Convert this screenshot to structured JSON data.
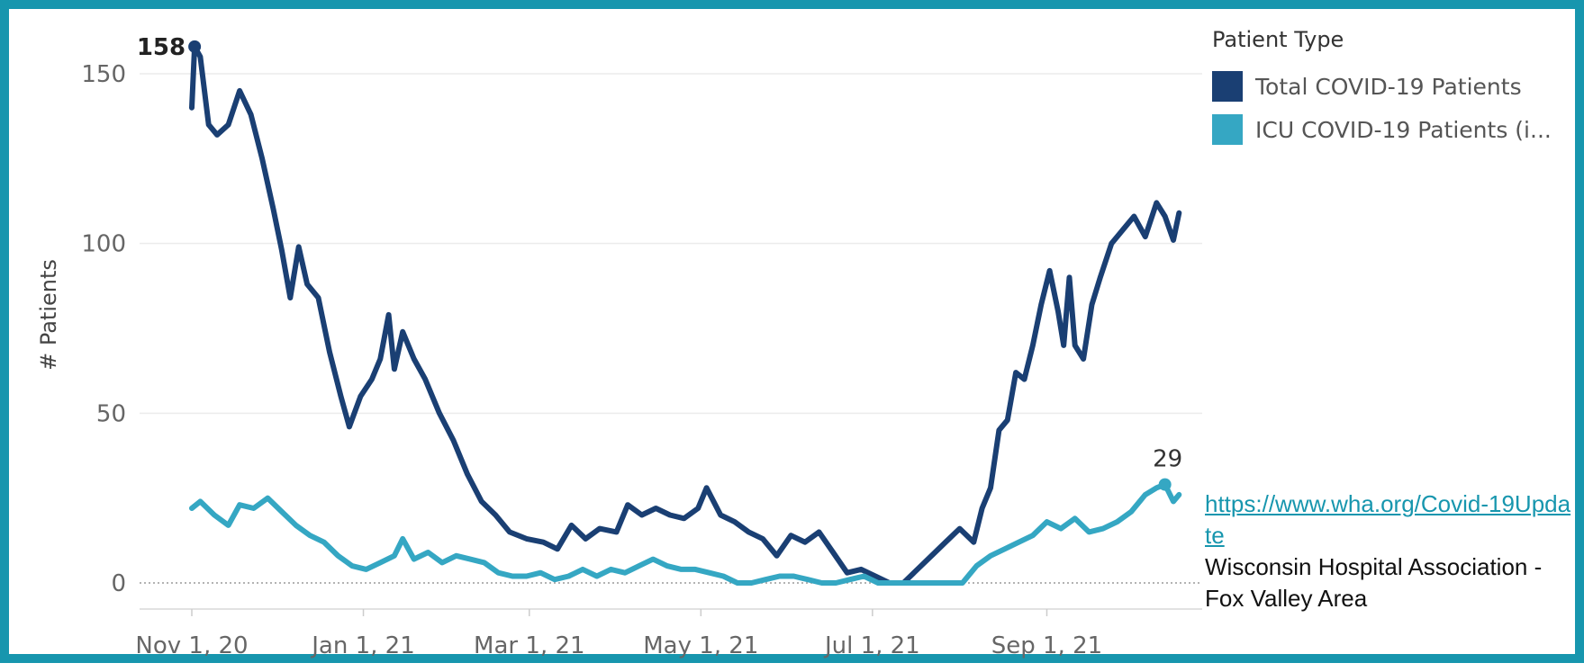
{
  "chart_data": {
    "type": "line",
    "title": "",
    "xlabel": "",
    "ylabel": "# Patients",
    "ylim": [
      0,
      160
    ],
    "xlim": [
      "2020-11-01",
      "2021-10-20"
    ],
    "y_ticks": [
      0,
      50,
      100,
      150
    ],
    "x_ticks": [
      {
        "date": "2020-11-01",
        "label": "Nov 1, 20"
      },
      {
        "date": "2021-01-01",
        "label": "Jan 1, 21"
      },
      {
        "date": "2021-03-01",
        "label": "Mar 1, 21"
      },
      {
        "date": "2021-05-01",
        "label": "May 1, 21"
      },
      {
        "date": "2021-07-01",
        "label": "Jul 1, 21"
      },
      {
        "date": "2021-09-01",
        "label": "Sep 1, 21"
      }
    ],
    "legend": {
      "title": "Patient Type",
      "position": "top-right"
    },
    "grid": true,
    "series": [
      {
        "name": "Total COVID-19 Patients",
        "color": "#1a3f73",
        "points": [
          [
            "2020-11-01",
            140
          ],
          [
            "2020-11-02",
            158
          ],
          [
            "2020-11-04",
            155
          ],
          [
            "2020-11-07",
            135
          ],
          [
            "2020-11-10",
            132
          ],
          [
            "2020-11-14",
            135
          ],
          [
            "2020-11-18",
            145
          ],
          [
            "2020-11-22",
            138
          ],
          [
            "2020-11-26",
            125
          ],
          [
            "2020-11-30",
            110
          ],
          [
            "2020-12-03",
            98
          ],
          [
            "2020-12-06",
            84
          ],
          [
            "2020-12-09",
            99
          ],
          [
            "2020-12-12",
            88
          ],
          [
            "2020-12-16",
            84
          ],
          [
            "2020-12-20",
            68
          ],
          [
            "2020-12-24",
            55
          ],
          [
            "2020-12-27",
            46
          ],
          [
            "2020-12-31",
            55
          ],
          [
            "2021-01-04",
            60
          ],
          [
            "2021-01-07",
            66
          ],
          [
            "2021-01-10",
            79
          ],
          [
            "2021-01-12",
            63
          ],
          [
            "2021-01-15",
            74
          ],
          [
            "2021-01-19",
            66
          ],
          [
            "2021-01-23",
            60
          ],
          [
            "2021-01-28",
            50
          ],
          [
            "2021-02-02",
            42
          ],
          [
            "2021-02-07",
            32
          ],
          [
            "2021-02-12",
            24
          ],
          [
            "2021-02-17",
            20
          ],
          [
            "2021-02-22",
            15
          ],
          [
            "2021-02-28",
            13
          ],
          [
            "2021-03-06",
            12
          ],
          [
            "2021-03-11",
            10
          ],
          [
            "2021-03-16",
            17
          ],
          [
            "2021-03-21",
            13
          ],
          [
            "2021-03-26",
            16
          ],
          [
            "2021-04-01",
            15
          ],
          [
            "2021-04-05",
            23
          ],
          [
            "2021-04-10",
            20
          ],
          [
            "2021-04-15",
            22
          ],
          [
            "2021-04-20",
            20
          ],
          [
            "2021-04-25",
            19
          ],
          [
            "2021-04-30",
            22
          ],
          [
            "2021-05-03",
            28
          ],
          [
            "2021-05-08",
            20
          ],
          [
            "2021-05-13",
            18
          ],
          [
            "2021-05-18",
            15
          ],
          [
            "2021-05-23",
            13
          ],
          [
            "2021-05-28",
            8
          ],
          [
            "2021-06-02",
            14
          ],
          [
            "2021-06-07",
            12
          ],
          [
            "2021-06-12",
            15
          ],
          [
            "2021-06-17",
            9
          ],
          [
            "2021-06-22",
            3
          ],
          [
            "2021-06-27",
            4
          ],
          [
            "2021-07-02",
            2
          ],
          [
            "2021-07-07",
            0
          ],
          [
            "2021-07-12",
            0
          ],
          [
            "2021-07-17",
            4
          ],
          [
            "2021-07-22",
            8
          ],
          [
            "2021-07-27",
            12
          ],
          [
            "2021-08-01",
            16
          ],
          [
            "2021-08-06",
            12
          ],
          [
            "2021-08-09",
            22
          ],
          [
            "2021-08-12",
            28
          ],
          [
            "2021-08-15",
            45
          ],
          [
            "2021-08-18",
            48
          ],
          [
            "2021-08-21",
            62
          ],
          [
            "2021-08-24",
            60
          ],
          [
            "2021-08-27",
            70
          ],
          [
            "2021-08-30",
            82
          ],
          [
            "2021-09-02",
            92
          ],
          [
            "2021-09-05",
            80
          ],
          [
            "2021-09-07",
            70
          ],
          [
            "2021-09-09",
            90
          ],
          [
            "2021-09-11",
            70
          ],
          [
            "2021-09-14",
            66
          ],
          [
            "2021-09-17",
            82
          ],
          [
            "2021-09-20",
            90
          ],
          [
            "2021-09-24",
            100
          ],
          [
            "2021-09-28",
            104
          ],
          [
            "2021-10-02",
            108
          ],
          [
            "2021-10-06",
            102
          ],
          [
            "2021-10-10",
            112
          ],
          [
            "2021-10-13",
            108
          ],
          [
            "2021-10-16",
            101
          ],
          [
            "2021-10-18",
            109
          ]
        ],
        "labels": [
          {
            "date": "2020-11-02",
            "value": 158,
            "text": "158"
          }
        ]
      },
      {
        "name": "ICU COVID-19 Patients (i...",
        "color": "#35a7c3",
        "points": [
          [
            "2020-11-01",
            22
          ],
          [
            "2020-11-04",
            24
          ],
          [
            "2020-11-09",
            20
          ],
          [
            "2020-11-14",
            17
          ],
          [
            "2020-11-18",
            23
          ],
          [
            "2020-11-23",
            22
          ],
          [
            "2020-11-28",
            25
          ],
          [
            "2020-12-03",
            21
          ],
          [
            "2020-12-08",
            17
          ],
          [
            "2020-12-13",
            14
          ],
          [
            "2020-12-18",
            12
          ],
          [
            "2020-12-23",
            8
          ],
          [
            "2020-12-28",
            5
          ],
          [
            "2021-01-02",
            4
          ],
          [
            "2021-01-07",
            6
          ],
          [
            "2021-01-12",
            8
          ],
          [
            "2021-01-15",
            13
          ],
          [
            "2021-01-19",
            7
          ],
          [
            "2021-01-24",
            9
          ],
          [
            "2021-01-29",
            6
          ],
          [
            "2021-02-03",
            8
          ],
          [
            "2021-02-08",
            7
          ],
          [
            "2021-02-13",
            6
          ],
          [
            "2021-02-18",
            3
          ],
          [
            "2021-02-23",
            2
          ],
          [
            "2021-02-28",
            2
          ],
          [
            "2021-03-05",
            3
          ],
          [
            "2021-03-10",
            1
          ],
          [
            "2021-03-15",
            2
          ],
          [
            "2021-03-20",
            4
          ],
          [
            "2021-03-25",
            2
          ],
          [
            "2021-03-30",
            4
          ],
          [
            "2021-04-04",
            3
          ],
          [
            "2021-04-09",
            5
          ],
          [
            "2021-04-14",
            7
          ],
          [
            "2021-04-19",
            5
          ],
          [
            "2021-04-24",
            4
          ],
          [
            "2021-04-29",
            4
          ],
          [
            "2021-05-04",
            3
          ],
          [
            "2021-05-09",
            2
          ],
          [
            "2021-05-14",
            0
          ],
          [
            "2021-05-19",
            0
          ],
          [
            "2021-05-24",
            1
          ],
          [
            "2021-05-29",
            2
          ],
          [
            "2021-06-03",
            2
          ],
          [
            "2021-06-08",
            1
          ],
          [
            "2021-06-13",
            0
          ],
          [
            "2021-06-18",
            0
          ],
          [
            "2021-06-23",
            1
          ],
          [
            "2021-06-28",
            2
          ],
          [
            "2021-07-03",
            0
          ],
          [
            "2021-07-08",
            0
          ],
          [
            "2021-07-13",
            0
          ],
          [
            "2021-07-18",
            0
          ],
          [
            "2021-07-23",
            0
          ],
          [
            "2021-07-28",
            0
          ],
          [
            "2021-08-02",
            0
          ],
          [
            "2021-08-07",
            5
          ],
          [
            "2021-08-12",
            8
          ],
          [
            "2021-08-17",
            10
          ],
          [
            "2021-08-22",
            12
          ],
          [
            "2021-08-27",
            14
          ],
          [
            "2021-09-01",
            18
          ],
          [
            "2021-09-06",
            16
          ],
          [
            "2021-09-11",
            19
          ],
          [
            "2021-09-16",
            15
          ],
          [
            "2021-09-21",
            16
          ],
          [
            "2021-09-26",
            18
          ],
          [
            "2021-10-01",
            21
          ],
          [
            "2021-10-06",
            26
          ],
          [
            "2021-10-10",
            28
          ],
          [
            "2021-10-13",
            29
          ],
          [
            "2021-10-16",
            24
          ],
          [
            "2021-10-18",
            26
          ]
        ],
        "labels": [
          {
            "date": "2021-10-13",
            "value": 29,
            "text": "29"
          }
        ]
      }
    ]
  },
  "source": {
    "link_text": "https://www.wha.org/Covid-19Update",
    "description": "Wisconsin Hospital Association - Fox Valley Area"
  }
}
